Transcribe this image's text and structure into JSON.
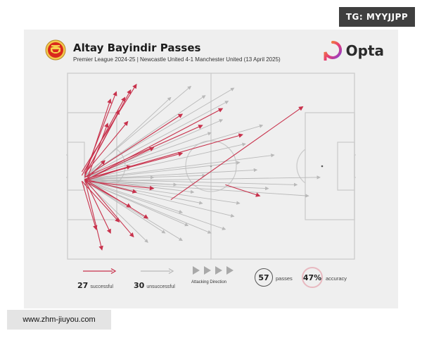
{
  "watermark": "TG: MYYJJPP",
  "site_url": "www.zhm-jiuyou.com",
  "title": "Altay Bayindir Passes",
  "subtitle": "Premier League 2024-25 | Newcastle United 4-1 Manchester United (13 April 2025)",
  "brand": "Opta",
  "colors": {
    "successful": "#c8324c",
    "unsuccessful": "#b9b9b9",
    "pitch_line": "#c9c9c9",
    "card": "#efefef"
  },
  "icons": {
    "club_crest": "manchester-united-crest-icon",
    "brand_logo": "opta-logo-icon"
  },
  "legend": {
    "successful_count": "27",
    "successful_label": "successful",
    "unsuccessful_count": "30",
    "unsuccessful_label": "unsuccessful",
    "direction_label": "Attacking Direction",
    "passes_value": "57",
    "passes_label": "passes",
    "accuracy_value": "47%",
    "accuracy_label": "accuracy"
  },
  "chart_data": {
    "type": "scatter",
    "description_units": "pitch coordinates 0-100 (x = length, attacking left to right; y = width, 0 at top)",
    "attacking_direction": "left-to-right",
    "summary": {
      "total": 57,
      "successful": 27,
      "unsuccessful": 30,
      "accuracy_pct": 47
    },
    "series": [
      {
        "name": "successful",
        "passes": [
          {
            "x1": 5,
            "y1": 53,
            "x2": 24,
            "y2": 6
          },
          {
            "x1": 6,
            "y1": 55,
            "x2": 22,
            "y2": 9
          },
          {
            "x1": 5,
            "y1": 55,
            "x2": 20,
            "y2": 13
          },
          {
            "x1": 6,
            "y1": 54,
            "x2": 17,
            "y2": 10
          },
          {
            "x1": 6,
            "y1": 56,
            "x2": 15,
            "y2": 14
          },
          {
            "x1": 6,
            "y1": 55,
            "x2": 18,
            "y2": 20
          },
          {
            "x1": 7,
            "y1": 56,
            "x2": 14,
            "y2": 27
          },
          {
            "x1": 6,
            "y1": 54,
            "x2": 21,
            "y2": 26
          },
          {
            "x1": 6,
            "y1": 56,
            "x2": 40,
            "y2": 22
          },
          {
            "x1": 7,
            "y1": 57,
            "x2": 54,
            "y2": 19
          },
          {
            "x1": 6,
            "y1": 56,
            "x2": 47,
            "y2": 28
          },
          {
            "x1": 6,
            "y1": 57,
            "x2": 61,
            "y2": 33
          },
          {
            "x1": 7,
            "y1": 57,
            "x2": 30,
            "y2": 40
          },
          {
            "x1": 6,
            "y1": 57,
            "x2": 40,
            "y2": 43
          },
          {
            "x1": 6,
            "y1": 58,
            "x2": 13,
            "y2": 47
          },
          {
            "x1": 6,
            "y1": 58,
            "x2": 22,
            "y2": 50
          },
          {
            "x1": 36,
            "y1": 68,
            "x2": 82,
            "y2": 18
          },
          {
            "x1": 55,
            "y1": 60,
            "x2": 67,
            "y2": 66
          },
          {
            "x1": 6,
            "y1": 57,
            "x2": 24,
            "y2": 64
          },
          {
            "x1": 6,
            "y1": 58,
            "x2": 22,
            "y2": 72
          },
          {
            "x1": 5,
            "y1": 58,
            "x2": 18,
            "y2": 80
          },
          {
            "x1": 5,
            "y1": 58,
            "x2": 10,
            "y2": 84
          },
          {
            "x1": 6,
            "y1": 57,
            "x2": 23,
            "y2": 88
          },
          {
            "x1": 6,
            "y1": 57,
            "x2": 28,
            "y2": 78
          },
          {
            "x1": 6,
            "y1": 58,
            "x2": 30,
            "y2": 62
          },
          {
            "x1": 6,
            "y1": 57,
            "x2": 12,
            "y2": 95
          },
          {
            "x1": 6,
            "y1": 57,
            "x2": 15,
            "y2": 86
          }
        ]
      },
      {
        "name": "unsuccessful",
        "passes": [
          {
            "x1": 6,
            "y1": 55,
            "x2": 43,
            "y2": 7
          },
          {
            "x1": 6,
            "y1": 55,
            "x2": 58,
            "y2": 8
          },
          {
            "x1": 6,
            "y1": 56,
            "x2": 48,
            "y2": 12
          },
          {
            "x1": 6,
            "y1": 56,
            "x2": 36,
            "y2": 13
          },
          {
            "x1": 6,
            "y1": 56,
            "x2": 56,
            "y2": 15
          },
          {
            "x1": 6,
            "y1": 57,
            "x2": 54,
            "y2": 25
          },
          {
            "x1": 7,
            "y1": 57,
            "x2": 62,
            "y2": 38
          },
          {
            "x1": 7,
            "y1": 57,
            "x2": 60,
            "y2": 48
          },
          {
            "x1": 7,
            "y1": 57,
            "x2": 66,
            "y2": 52
          },
          {
            "x1": 7,
            "y1": 57,
            "x2": 80,
            "y2": 60
          },
          {
            "x1": 7,
            "y1": 58,
            "x2": 70,
            "y2": 62
          },
          {
            "x1": 7,
            "y1": 58,
            "x2": 84,
            "y2": 66
          },
          {
            "x1": 7,
            "y1": 58,
            "x2": 88,
            "y2": 56
          },
          {
            "x1": 7,
            "y1": 58,
            "x2": 60,
            "y2": 70
          },
          {
            "x1": 7,
            "y1": 58,
            "x2": 47,
            "y2": 70
          },
          {
            "x1": 7,
            "y1": 58,
            "x2": 58,
            "y2": 77
          },
          {
            "x1": 7,
            "y1": 58,
            "x2": 40,
            "y2": 75
          },
          {
            "x1": 6,
            "y1": 58,
            "x2": 42,
            "y2": 82
          },
          {
            "x1": 6,
            "y1": 58,
            "x2": 50,
            "y2": 86
          },
          {
            "x1": 6,
            "y1": 58,
            "x2": 34,
            "y2": 86
          },
          {
            "x1": 6,
            "y1": 58,
            "x2": 28,
            "y2": 91
          },
          {
            "x1": 6,
            "y1": 58,
            "x2": 40,
            "y2": 90
          },
          {
            "x1": 6,
            "y1": 58,
            "x2": 55,
            "y2": 84
          },
          {
            "x1": 6,
            "y1": 57,
            "x2": 30,
            "y2": 56
          },
          {
            "x1": 6,
            "y1": 57,
            "x2": 48,
            "y2": 55
          },
          {
            "x1": 6,
            "y1": 57,
            "x2": 38,
            "y2": 60
          },
          {
            "x1": 6,
            "y1": 57,
            "x2": 72,
            "y2": 44
          },
          {
            "x1": 6,
            "y1": 56,
            "x2": 50,
            "y2": 32
          },
          {
            "x1": 6,
            "y1": 56,
            "x2": 68,
            "y2": 28
          },
          {
            "x1": 6,
            "y1": 57,
            "x2": 44,
            "y2": 64
          }
        ]
      }
    ]
  }
}
